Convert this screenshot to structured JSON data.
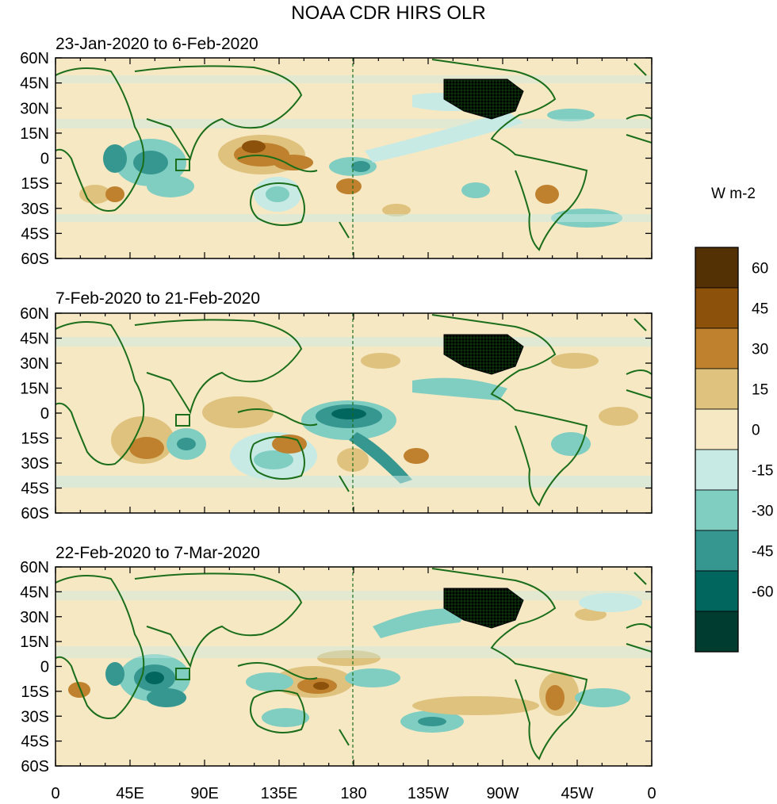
{
  "title": "NOAA CDR HIRS OLR",
  "units_label": "W m-2",
  "panels": [
    {
      "period": "23-Jan-2020 to 6-Feb-2020"
    },
    {
      "period": "7-Feb-2020 to 21-Feb-2020"
    },
    {
      "period": "22-Feb-2020 to 7-Mar-2020"
    }
  ],
  "lat_ticks": [
    "60N",
    "45N",
    "30N",
    "15N",
    "0",
    "15S",
    "30S",
    "45S",
    "60S"
  ],
  "lon_ticks": [
    "0",
    "45E",
    "90E",
    "135E",
    "180",
    "135W",
    "90W",
    "45W",
    "0"
  ],
  "colorbar": {
    "labels": [
      "60",
      "45",
      "30",
      "15",
      "0",
      "-15",
      "-30",
      "-45",
      "-60"
    ],
    "colors": [
      "#543005",
      "#8c510a",
      "#bf812d",
      "#dfc27d",
      "#f6e8c3",
      "#c7eae5",
      "#80cdc1",
      "#35978f",
      "#01665e",
      "#003c30"
    ]
  },
  "colors": {
    "coast": "#1a6e1a",
    "land_us": "#000000",
    "axis": "#000000"
  }
}
